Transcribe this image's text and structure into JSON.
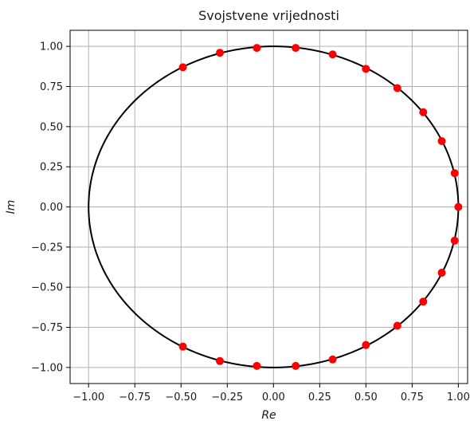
{
  "chart_data": {
    "type": "scatter",
    "title": "Svojstvene vrijednosti",
    "xlabel": "Re",
    "ylabel": "Im",
    "xlim": [
      -1.1,
      1.05
    ],
    "ylim": [
      -1.1,
      1.1
    ],
    "xticks": [
      -1.0,
      -0.75,
      -0.5,
      -0.25,
      0.0,
      0.25,
      0.5,
      0.75,
      1.0
    ],
    "xtick_labels": [
      "−1.00",
      "−0.75",
      "−0.50",
      "−0.25",
      "0.00",
      "0.25",
      "0.50",
      "0.75",
      "1.00"
    ],
    "yticks": [
      1.0,
      0.75,
      0.5,
      0.25,
      0.0,
      -0.25,
      -0.5,
      -0.75,
      -1.0
    ],
    "ytick_labels": [
      "1.00",
      "0.75",
      "0.50",
      "0.25",
      "0.00",
      "−0.25",
      "−0.50",
      "−0.75",
      "−1.00"
    ],
    "grid": true,
    "curve": {
      "shape": "unit-circle",
      "color": "#000000"
    },
    "points_color": "#ff0000",
    "points": [
      {
        "x": 1.0,
        "y": 0.0
      },
      {
        "x": 0.98,
        "y": 0.21
      },
      {
        "x": 0.91,
        "y": 0.41
      },
      {
        "x": 0.81,
        "y": 0.59
      },
      {
        "x": 0.67,
        "y": 0.74
      },
      {
        "x": 0.5,
        "y": 0.86
      },
      {
        "x": 0.32,
        "y": 0.95
      },
      {
        "x": 0.12,
        "y": 0.99
      },
      {
        "x": -0.09,
        "y": 0.99
      },
      {
        "x": -0.29,
        "y": 0.96
      },
      {
        "x": -0.49,
        "y": 0.87
      },
      {
        "x": 0.98,
        "y": -0.21
      },
      {
        "x": 0.91,
        "y": -0.41
      },
      {
        "x": 0.81,
        "y": -0.59
      },
      {
        "x": 0.67,
        "y": -0.74
      },
      {
        "x": 0.5,
        "y": -0.86
      },
      {
        "x": 0.32,
        "y": -0.95
      },
      {
        "x": 0.12,
        "y": -0.99
      },
      {
        "x": -0.09,
        "y": -0.99
      },
      {
        "x": -0.29,
        "y": -0.96
      },
      {
        "x": -0.49,
        "y": -0.87
      }
    ]
  }
}
